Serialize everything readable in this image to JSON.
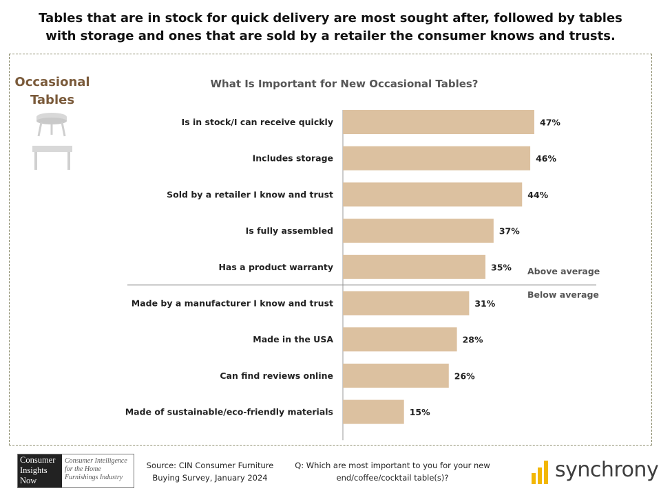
{
  "headline": "Tables that are in stock for quick delivery are most sought after, followed by tables with storage and ones that are sold by a retailer the consumer knows and trusts.",
  "side_title": "Occasional Tables",
  "icons": [
    "round-side-table-icon",
    "rectangular-coffee-table-icon"
  ],
  "colors": {
    "bar": "#dcc1a0",
    "divider": "#8c8c8c",
    "side_title": "#7a5a3a",
    "panel_border": "#8a8a6a"
  },
  "notes": {
    "above": "Above average",
    "below": "Below average"
  },
  "chart_data": {
    "type": "bar",
    "orientation": "horizontal",
    "title": "What Is Important for New Occasional Tables?",
    "categories": [
      "Is in stock/I can receive quickly",
      "Includes storage",
      "Sold by a retailer I know and trust",
      "Is fully assembled",
      "Has a product warranty",
      "Made by a manufacturer I know and trust",
      "Made in the USA",
      "Can find reviews online",
      "Made of sustainable/eco-friendly materials"
    ],
    "values": [
      47,
      46,
      44,
      37,
      35,
      31,
      28,
      26,
      15
    ],
    "value_labels": [
      "47%",
      "46%",
      "44%",
      "37%",
      "35%",
      "31%",
      "28%",
      "26%",
      "15%"
    ],
    "xlim": [
      0,
      50
    ],
    "unit": "%",
    "grid": false,
    "legend": "none"
  },
  "footer": {
    "logo_left_lines": [
      "Consumer",
      "Insights",
      "Now"
    ],
    "logo_right_lines": [
      "Consumer Intelligence",
      "for the Home",
      "Furnishings Industry"
    ],
    "source_lines": [
      "Source:  CIN Consumer Furniture",
      "Buying Survey, January 2024"
    ],
    "question_lines": [
      "Q: Which are most important to you for your new",
      "end/coffee/cocktail table(s)?"
    ],
    "brand": "synchrony"
  }
}
